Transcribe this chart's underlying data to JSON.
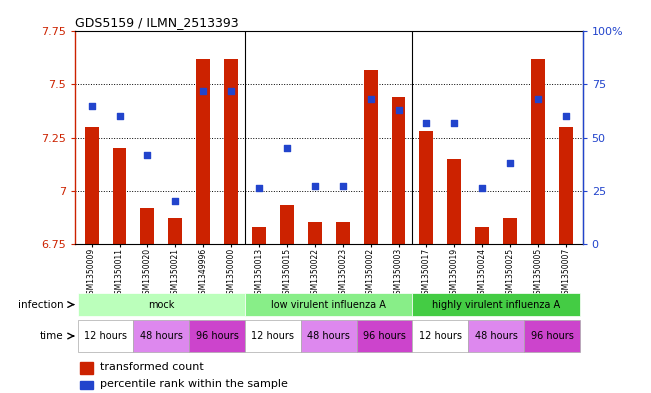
{
  "title": "GDS5159 / ILMN_2513393",
  "samples": [
    "GSM1350009",
    "GSM1350011",
    "GSM1350020",
    "GSM1350021",
    "GSM1349996",
    "GSM1350000",
    "GSM1350013",
    "GSM1350015",
    "GSM1350022",
    "GSM1350023",
    "GSM1350002",
    "GSM1350003",
    "GSM1350017",
    "GSM1350019",
    "GSM1350024",
    "GSM1350025",
    "GSM1350005",
    "GSM1350007"
  ],
  "bar_values": [
    7.3,
    7.2,
    6.92,
    6.87,
    7.62,
    7.62,
    6.83,
    6.93,
    6.85,
    6.85,
    7.57,
    7.44,
    7.28,
    7.15,
    6.83,
    6.87,
    7.62,
    7.3
  ],
  "dot_values": [
    65,
    60,
    42,
    20,
    72,
    72,
    26,
    45,
    27,
    27,
    68,
    63,
    57,
    57,
    26,
    38,
    68,
    60
  ],
  "ylim_left": [
    6.75,
    7.75
  ],
  "ylim_right": [
    0,
    100
  ],
  "yticks_left": [
    6.75,
    7.0,
    7.25,
    7.5,
    7.75
  ],
  "yticks_right": [
    0,
    25,
    50,
    75,
    100
  ],
  "ytick_labels_left": [
    "6.75",
    "7",
    "7.25",
    "7.5",
    "7.75"
  ],
  "ytick_labels_right": [
    "0",
    "25",
    "50",
    "75",
    "100%"
  ],
  "bar_color": "#cc2200",
  "dot_color": "#2244cc",
  "bar_bottom": 6.75,
  "infection_groups": [
    {
      "label": "mock",
      "start": 0,
      "end": 6,
      "color": "#bbffbb"
    },
    {
      "label": "low virulent influenza A",
      "start": 6,
      "end": 12,
      "color": "#88ee88"
    },
    {
      "label": "highly virulent influenza A",
      "start": 12,
      "end": 18,
      "color": "#44cc44"
    }
  ],
  "time_groups": [
    {
      "label": "12 hours",
      "start": 0,
      "end": 2,
      "color": "#ffffff"
    },
    {
      "label": "48 hours",
      "start": 2,
      "end": 4,
      "color": "#dd88ee"
    },
    {
      "label": "96 hours",
      "start": 4,
      "end": 6,
      "color": "#cc44cc"
    },
    {
      "label": "12 hours",
      "start": 6,
      "end": 8,
      "color": "#ffffff"
    },
    {
      "label": "48 hours",
      "start": 8,
      "end": 10,
      "color": "#dd88ee"
    },
    {
      "label": "96 hours",
      "start": 10,
      "end": 12,
      "color": "#cc44cc"
    },
    {
      "label": "12 hours",
      "start": 12,
      "end": 14,
      "color": "#ffffff"
    },
    {
      "label": "48 hours",
      "start": 14,
      "end": 16,
      "color": "#dd88ee"
    },
    {
      "label": "96 hours",
      "start": 16,
      "end": 18,
      "color": "#cc44cc"
    }
  ],
  "legend_bar_label": "transformed count",
  "legend_dot_label": "percentile rank within the sample",
  "infection_label": "infection",
  "time_label": "time"
}
